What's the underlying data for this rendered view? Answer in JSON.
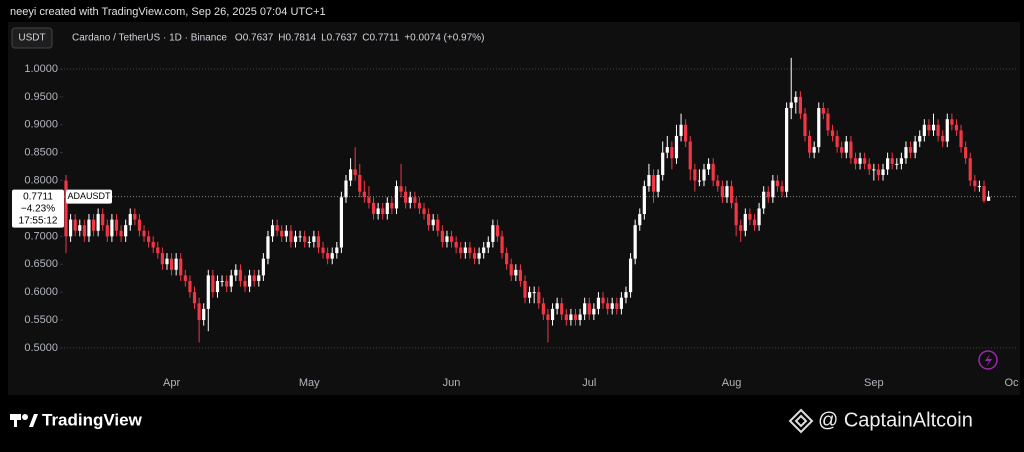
{
  "chart_data": {
    "type": "candlestick",
    "credit": "neeyi created with TradingView.com, Sep 26, 2025 07:04 UTC+1",
    "currency": "USDT",
    "title": "Cardano / TetherUS · 1D · Binance",
    "ohlc_labels": [
      "O",
      "H",
      "L",
      "C"
    ],
    "change": "+0.0074 (+0.97%)",
    "symbol": "ADAUSDT",
    "change_pct": "−4.23%",
    "countdown": "17:55:12",
    "brand": "TradingView",
    "watermark": "@ CaptainAltcoin",
    "colors": {
      "up": "#ffffff",
      "down": "#f23645"
    },
    "ylim": [
      0.464,
      1.0197
    ],
    "yticks": [
      {
        "value": 0.5,
        "label": "0.5000"
      },
      {
        "value": 0.55,
        "label": "0.5500"
      },
      {
        "value": 0.6,
        "label": "0.6000"
      },
      {
        "value": 0.65,
        "label": "0.6500"
      },
      {
        "value": 0.7,
        "label": "0.7000"
      },
      {
        "value": 0.75,
        "label": "0.7500"
      },
      {
        "value": 0.8,
        "label": "0.8000"
      },
      {
        "value": 0.85,
        "label": "0.8500"
      },
      {
        "value": 0.9,
        "label": "0.9000"
      },
      {
        "value": 0.95,
        "label": "0.9500"
      },
      {
        "value": 1,
        "label": "1.0000"
      }
    ],
    "xticks": [
      {
        "value": 23,
        "label": "Apr"
      },
      {
        "value": 53,
        "label": "May"
      },
      {
        "value": 84,
        "label": "Jun"
      },
      {
        "value": 114,
        "label": "Jul"
      },
      {
        "value": 145,
        "label": "Aug"
      },
      {
        "value": 176,
        "label": "Sep"
      },
      {
        "value": 206,
        "label": "Oc"
      }
    ],
    "candles": [
      [
        0.8,
        0.81,
        0.67,
        0.7
      ],
      [
        0.7,
        0.74,
        0.69,
        0.73
      ],
      [
        0.73,
        0.74,
        0.7,
        0.71
      ],
      [
        0.71,
        0.73,
        0.7,
        0.72
      ],
      [
        0.72,
        0.73,
        0.69,
        0.7
      ],
      [
        0.7,
        0.74,
        0.69,
        0.73
      ],
      [
        0.73,
        0.74,
        0.7,
        0.71
      ],
      [
        0.71,
        0.75,
        0.7,
        0.74
      ],
      [
        0.74,
        0.75,
        0.71,
        0.72
      ],
      [
        0.72,
        0.73,
        0.69,
        0.7
      ],
      [
        0.7,
        0.74,
        0.69,
        0.73
      ],
      [
        0.73,
        0.74,
        0.7,
        0.71
      ],
      [
        0.71,
        0.72,
        0.69,
        0.7
      ],
      [
        0.7,
        0.73,
        0.69,
        0.72
      ],
      [
        0.72,
        0.75,
        0.71,
        0.74
      ],
      [
        0.74,
        0.75,
        0.72,
        0.73
      ],
      [
        0.73,
        0.74,
        0.7,
        0.71
      ],
      [
        0.71,
        0.72,
        0.69,
        0.7
      ],
      [
        0.7,
        0.71,
        0.68,
        0.69
      ],
      [
        0.69,
        0.7,
        0.67,
        0.68
      ],
      [
        0.68,
        0.69,
        0.66,
        0.67
      ],
      [
        0.67,
        0.68,
        0.64,
        0.65
      ],
      [
        0.65,
        0.67,
        0.64,
        0.66
      ],
      [
        0.66,
        0.67,
        0.63,
        0.64
      ],
      [
        0.64,
        0.67,
        0.63,
        0.66
      ],
      [
        0.66,
        0.67,
        0.62,
        0.63
      ],
      [
        0.63,
        0.64,
        0.61,
        0.62
      ],
      [
        0.62,
        0.63,
        0.59,
        0.6
      ],
      [
        0.6,
        0.61,
        0.57,
        0.58
      ],
      [
        0.58,
        0.59,
        0.51,
        0.55
      ],
      [
        0.55,
        0.58,
        0.54,
        0.57
      ],
      [
        0.57,
        0.64,
        0.53,
        0.63
      ],
      [
        0.63,
        0.64,
        0.59,
        0.6
      ],
      [
        0.6,
        0.63,
        0.59,
        0.62
      ],
      [
        0.62,
        0.63,
        0.61,
        0.62
      ],
      [
        0.62,
        0.63,
        0.6,
        0.61
      ],
      [
        0.61,
        0.64,
        0.6,
        0.63
      ],
      [
        0.63,
        0.65,
        0.62,
        0.64
      ],
      [
        0.64,
        0.65,
        0.61,
        0.62
      ],
      [
        0.62,
        0.63,
        0.6,
        0.61
      ],
      [
        0.61,
        0.64,
        0.6,
        0.63
      ],
      [
        0.63,
        0.64,
        0.61,
        0.62
      ],
      [
        0.62,
        0.64,
        0.61,
        0.63
      ],
      [
        0.63,
        0.67,
        0.62,
        0.66
      ],
      [
        0.66,
        0.71,
        0.65,
        0.7
      ],
      [
        0.7,
        0.73,
        0.69,
        0.72
      ],
      [
        0.72,
        0.73,
        0.7,
        0.71
      ],
      [
        0.71,
        0.72,
        0.69,
        0.7
      ],
      [
        0.7,
        0.72,
        0.69,
        0.71
      ],
      [
        0.71,
        0.72,
        0.68,
        0.69
      ],
      [
        0.69,
        0.71,
        0.68,
        0.7
      ],
      [
        0.7,
        0.71,
        0.69,
        0.7
      ],
      [
        0.7,
        0.71,
        0.68,
        0.69
      ],
      [
        0.69,
        0.7,
        0.68,
        0.69
      ],
      [
        0.69,
        0.71,
        0.68,
        0.7
      ],
      [
        0.7,
        0.71,
        0.67,
        0.68
      ],
      [
        0.68,
        0.69,
        0.66,
        0.67
      ],
      [
        0.67,
        0.68,
        0.65,
        0.66
      ],
      [
        0.66,
        0.68,
        0.65,
        0.67
      ],
      [
        0.67,
        0.69,
        0.66,
        0.68
      ],
      [
        0.68,
        0.78,
        0.67,
        0.77
      ],
      [
        0.77,
        0.81,
        0.76,
        0.8
      ],
      [
        0.8,
        0.84,
        0.79,
        0.82
      ],
      [
        0.82,
        0.86,
        0.8,
        0.81
      ],
      [
        0.81,
        0.83,
        0.77,
        0.78
      ],
      [
        0.78,
        0.8,
        0.76,
        0.77
      ],
      [
        0.77,
        0.79,
        0.75,
        0.76
      ],
      [
        0.76,
        0.77,
        0.73,
        0.74
      ],
      [
        0.74,
        0.76,
        0.73,
        0.75
      ],
      [
        0.75,
        0.76,
        0.73,
        0.74
      ],
      [
        0.74,
        0.77,
        0.73,
        0.76
      ],
      [
        0.76,
        0.77,
        0.74,
        0.75
      ],
      [
        0.75,
        0.8,
        0.74,
        0.79
      ],
      [
        0.79,
        0.83,
        0.77,
        0.78
      ],
      [
        0.78,
        0.79,
        0.75,
        0.76
      ],
      [
        0.76,
        0.78,
        0.75,
        0.77
      ],
      [
        0.77,
        0.78,
        0.75,
        0.76
      ],
      [
        0.76,
        0.77,
        0.74,
        0.75
      ],
      [
        0.75,
        0.76,
        0.73,
        0.74
      ],
      [
        0.74,
        0.75,
        0.71,
        0.72
      ],
      [
        0.72,
        0.74,
        0.71,
        0.73
      ],
      [
        0.73,
        0.74,
        0.7,
        0.71
      ],
      [
        0.71,
        0.72,
        0.68,
        0.69
      ],
      [
        0.69,
        0.71,
        0.68,
        0.7
      ],
      [
        0.7,
        0.71,
        0.68,
        0.69
      ],
      [
        0.69,
        0.7,
        0.67,
        0.68
      ],
      [
        0.68,
        0.69,
        0.66,
        0.67
      ],
      [
        0.67,
        0.69,
        0.66,
        0.68
      ],
      [
        0.68,
        0.69,
        0.66,
        0.67
      ],
      [
        0.67,
        0.68,
        0.65,
        0.66
      ],
      [
        0.66,
        0.68,
        0.65,
        0.67
      ],
      [
        0.67,
        0.69,
        0.66,
        0.68
      ],
      [
        0.68,
        0.7,
        0.67,
        0.69
      ],
      [
        0.69,
        0.73,
        0.68,
        0.72
      ],
      [
        0.72,
        0.73,
        0.69,
        0.7
      ],
      [
        0.7,
        0.71,
        0.66,
        0.67
      ],
      [
        0.67,
        0.68,
        0.64,
        0.65
      ],
      [
        0.65,
        0.66,
        0.62,
        0.63
      ],
      [
        0.63,
        0.65,
        0.62,
        0.64
      ],
      [
        0.64,
        0.65,
        0.61,
        0.62
      ],
      [
        0.62,
        0.63,
        0.58,
        0.59
      ],
      [
        0.59,
        0.61,
        0.58,
        0.6
      ],
      [
        0.6,
        0.61,
        0.58,
        0.6
      ],
      [
        0.6,
        0.61,
        0.57,
        0.58
      ],
      [
        0.58,
        0.59,
        0.55,
        0.56
      ],
      [
        0.56,
        0.57,
        0.51,
        0.55
      ],
      [
        0.55,
        0.58,
        0.54,
        0.57
      ],
      [
        0.57,
        0.59,
        0.56,
        0.58
      ],
      [
        0.58,
        0.59,
        0.55,
        0.56
      ],
      [
        0.56,
        0.57,
        0.54,
        0.55
      ],
      [
        0.55,
        0.57,
        0.54,
        0.56
      ],
      [
        0.56,
        0.57,
        0.54,
        0.55
      ],
      [
        0.55,
        0.57,
        0.54,
        0.56
      ],
      [
        0.56,
        0.59,
        0.55,
        0.58
      ],
      [
        0.58,
        0.59,
        0.55,
        0.56
      ],
      [
        0.56,
        0.58,
        0.55,
        0.57
      ],
      [
        0.57,
        0.6,
        0.56,
        0.59
      ],
      [
        0.59,
        0.6,
        0.57,
        0.58
      ],
      [
        0.58,
        0.59,
        0.56,
        0.57
      ],
      [
        0.57,
        0.59,
        0.56,
        0.58
      ],
      [
        0.58,
        0.59,
        0.56,
        0.57
      ],
      [
        0.57,
        0.6,
        0.56,
        0.59
      ],
      [
        0.59,
        0.61,
        0.58,
        0.6
      ],
      [
        0.6,
        0.67,
        0.59,
        0.66
      ],
      [
        0.66,
        0.73,
        0.65,
        0.72
      ],
      [
        0.72,
        0.75,
        0.71,
        0.74
      ],
      [
        0.74,
        0.8,
        0.73,
        0.79
      ],
      [
        0.79,
        0.83,
        0.78,
        0.81
      ],
      [
        0.81,
        0.82,
        0.76,
        0.78
      ],
      [
        0.78,
        0.82,
        0.77,
        0.81
      ],
      [
        0.81,
        0.87,
        0.8,
        0.85
      ],
      [
        0.85,
        0.88,
        0.84,
        0.86
      ],
      [
        0.86,
        0.87,
        0.82,
        0.84
      ],
      [
        0.84,
        0.9,
        0.83,
        0.88
      ],
      [
        0.88,
        0.92,
        0.87,
        0.9
      ],
      [
        0.9,
        0.91,
        0.86,
        0.87
      ],
      [
        0.87,
        0.88,
        0.8,
        0.82
      ],
      [
        0.82,
        0.83,
        0.78,
        0.8
      ],
      [
        0.8,
        0.82,
        0.79,
        0.8
      ],
      [
        0.8,
        0.83,
        0.79,
        0.82
      ],
      [
        0.82,
        0.84,
        0.81,
        0.83
      ],
      [
        0.83,
        0.84,
        0.79,
        0.8
      ],
      [
        0.8,
        0.81,
        0.78,
        0.79
      ],
      [
        0.79,
        0.8,
        0.76,
        0.77
      ],
      [
        0.77,
        0.8,
        0.76,
        0.79
      ],
      [
        0.79,
        0.8,
        0.75,
        0.76
      ],
      [
        0.76,
        0.77,
        0.7,
        0.72
      ],
      [
        0.72,
        0.73,
        0.69,
        0.71
      ],
      [
        0.71,
        0.75,
        0.7,
        0.74
      ],
      [
        0.74,
        0.75,
        0.72,
        0.73
      ],
      [
        0.73,
        0.74,
        0.71,
        0.72
      ],
      [
        0.72,
        0.76,
        0.71,
        0.75
      ],
      [
        0.75,
        0.79,
        0.74,
        0.78
      ],
      [
        0.78,
        0.79,
        0.76,
        0.77
      ],
      [
        0.77,
        0.81,
        0.76,
        0.8
      ],
      [
        0.8,
        0.81,
        0.78,
        0.79
      ],
      [
        0.79,
        0.8,
        0.77,
        0.78
      ],
      [
        0.78,
        0.94,
        0.77,
        0.93
      ],
      [
        0.93,
        1.02,
        0.91,
        0.94
      ],
      [
        0.94,
        0.96,
        0.92,
        0.95
      ],
      [
        0.95,
        0.96,
        0.91,
        0.92
      ],
      [
        0.92,
        0.93,
        0.87,
        0.88
      ],
      [
        0.88,
        0.89,
        0.84,
        0.85
      ],
      [
        0.85,
        0.87,
        0.84,
        0.86
      ],
      [
        0.86,
        0.94,
        0.85,
        0.93
      ],
      [
        0.93,
        0.94,
        0.91,
        0.92
      ],
      [
        0.92,
        0.93,
        0.88,
        0.89
      ],
      [
        0.89,
        0.9,
        0.87,
        0.88
      ],
      [
        0.88,
        0.89,
        0.85,
        0.86
      ],
      [
        0.86,
        0.87,
        0.84,
        0.85
      ],
      [
        0.85,
        0.88,
        0.84,
        0.87
      ],
      [
        0.87,
        0.88,
        0.83,
        0.84
      ],
      [
        0.84,
        0.85,
        0.82,
        0.83
      ],
      [
        0.83,
        0.85,
        0.82,
        0.84
      ],
      [
        0.84,
        0.85,
        0.82,
        0.83
      ],
      [
        0.83,
        0.84,
        0.81,
        0.82
      ],
      [
        0.82,
        0.83,
        0.8,
        0.82
      ],
      [
        0.82,
        0.83,
        0.8,
        0.81
      ],
      [
        0.81,
        0.83,
        0.8,
        0.82
      ],
      [
        0.82,
        0.85,
        0.81,
        0.84
      ],
      [
        0.84,
        0.85,
        0.82,
        0.83
      ],
      [
        0.83,
        0.84,
        0.82,
        0.83
      ],
      [
        0.83,
        0.85,
        0.82,
        0.84
      ],
      [
        0.84,
        0.87,
        0.83,
        0.86
      ],
      [
        0.86,
        0.87,
        0.84,
        0.85
      ],
      [
        0.85,
        0.88,
        0.84,
        0.87
      ],
      [
        0.87,
        0.89,
        0.86,
        0.88
      ],
      [
        0.88,
        0.91,
        0.87,
        0.9
      ],
      [
        0.9,
        0.91,
        0.88,
        0.89
      ],
      [
        0.89,
        0.92,
        0.88,
        0.9
      ],
      [
        0.9,
        0.91,
        0.87,
        0.88
      ],
      [
        0.88,
        0.89,
        0.86,
        0.87
      ],
      [
        0.87,
        0.92,
        0.86,
        0.91
      ],
      [
        0.91,
        0.92,
        0.89,
        0.9
      ],
      [
        0.9,
        0.91,
        0.88,
        0.89
      ],
      [
        0.89,
        0.9,
        0.85,
        0.86
      ],
      [
        0.86,
        0.87,
        0.83,
        0.84
      ],
      [
        0.84,
        0.85,
        0.79,
        0.8
      ],
      [
        0.8,
        0.81,
        0.78,
        0.79
      ],
      [
        0.79,
        0.8,
        0.78,
        0.79
      ],
      [
        0.79,
        0.8,
        0.76,
        0.7637
      ],
      [
        0.7637,
        0.7814,
        0.7637,
        0.7711
      ]
    ]
  }
}
